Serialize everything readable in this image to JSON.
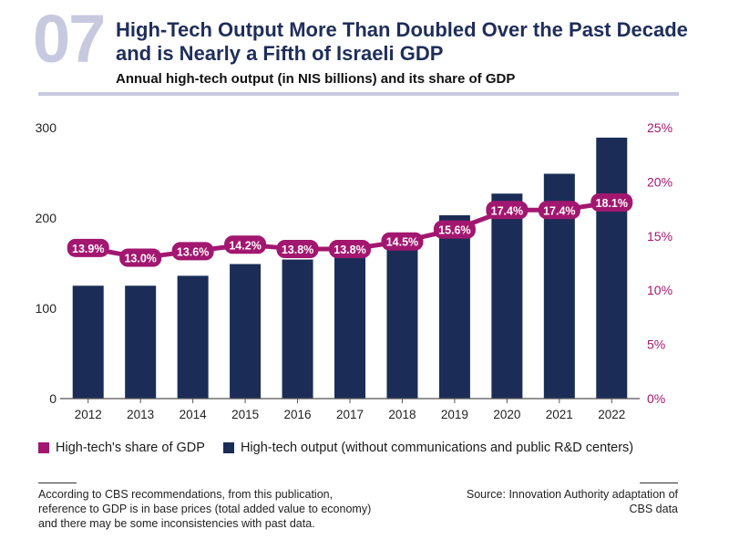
{
  "header": {
    "number": "07",
    "title": "High-Tech Output More Than Doubled Over the Past Decade\nand is Nearly a Fifth of Israeli GDP",
    "subtitle": "Annual high-tech output (in NIS billions) and its share of GDP"
  },
  "colors": {
    "bars": "#1b2d57",
    "line": "#a2176f",
    "accent_number": "#c7c9de"
  },
  "legend": {
    "share_label": "High-tech's share of GDP",
    "output_label": "High-tech output (without communications and public R&D centers)"
  },
  "footer": {
    "note": "According to CBS recommendations, from this publication,\nreference to GDP is in base prices (total added value to economy)\nand there may be some inconsistencies with past data.",
    "source": "Source: Innovation Authority adaptation of\nCBS data"
  },
  "chart_data": {
    "type": "bar",
    "categories": [
      "2012",
      "2013",
      "2014",
      "2015",
      "2016",
      "2017",
      "2018",
      "2019",
      "2020",
      "2021",
      "2022"
    ],
    "series": [
      {
        "name": "High-tech output (without communications and public R&D centers)",
        "type": "bar",
        "axis": "left",
        "values": [
          125,
          125,
          136,
          149,
          154,
          161,
          174,
          203,
          227,
          249,
          289
        ]
      },
      {
        "name": "High-tech's share of GDP",
        "type": "line",
        "axis": "right",
        "values": [
          13.9,
          13.0,
          13.6,
          14.2,
          13.8,
          13.8,
          14.5,
          15.6,
          17.4,
          17.4,
          18.1
        ],
        "labels": [
          "13.9%",
          "13.0%",
          "13.6%",
          "14.2%",
          "13.8%",
          "13.8%",
          "14.5%",
          "15.6%",
          "17.4%",
          "17.4%",
          "18.1%"
        ]
      }
    ],
    "y_left": {
      "ylim": [
        0,
        300
      ],
      "ticks": [
        "0",
        "100",
        "200",
        "300"
      ],
      "values": [
        0,
        100,
        200,
        300
      ]
    },
    "y_right": {
      "ylim": [
        0,
        25
      ],
      "ticks": [
        "0%",
        "5%",
        "10%",
        "15%",
        "20%",
        "25%"
      ],
      "values": [
        0,
        5,
        10,
        15,
        20,
        25
      ]
    },
    "grid": false,
    "legend_position": "bottom"
  }
}
